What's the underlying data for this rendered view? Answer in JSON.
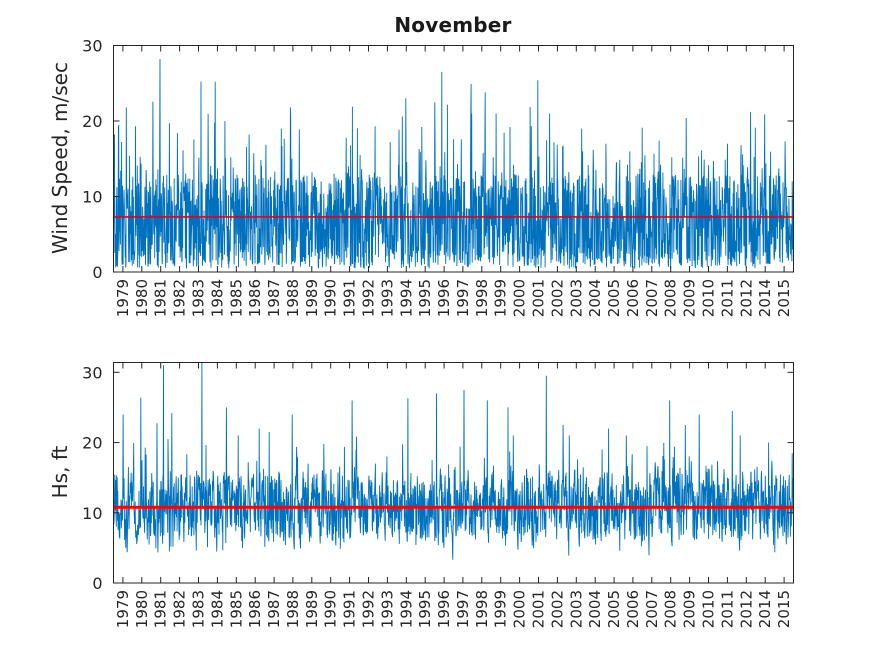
{
  "chart_data": [
    {
      "type": "line",
      "title": "November",
      "ylabel": "Wind Speed, m/sec",
      "ylim": [
        0,
        30
      ],
      "yticks": [
        0,
        10,
        20,
        30
      ],
      "x_tick_labels": [
        "1979",
        "1980",
        "1981",
        "1982",
        "1983",
        "1984",
        "1985",
        "1986",
        "1987",
        "1988",
        "1989",
        "1990",
        "1991",
        "1992",
        "1993",
        "1994",
        "1995",
        "1996",
        "1997",
        "1998",
        "1999",
        "2000",
        "2001",
        "2002",
        "2003",
        "2004",
        "2005",
        "2006",
        "2007",
        "2008",
        "2009",
        "2010",
        "2011",
        "2012",
        "2014",
        "2015"
      ],
      "x_note": "concatenated November samples per year; no 2013 data",
      "grid": false,
      "legend": "none",
      "series": [
        {
          "name": "wind-speed",
          "color": "#0072BD",
          "yearly_peaks": [
            21.8,
            19.3,
            28.2,
            18.4,
            25.2,
            25.2,
            15.2,
            18.2,
            19.0,
            21.8,
            13.2,
            13.0,
            21.9,
            19.3,
            17.2,
            23.0,
            19.2,
            26.5,
            24.9,
            23.8,
            21.0,
            14.2,
            25.4,
            21.0,
            19.0,
            16.2,
            17.0,
            19.1,
            17.4,
            15.2,
            20.4,
            16.1,
            17.0,
            21.2,
            20.9,
            17.3
          ],
          "typical_min": 0.4
        }
      ],
      "mean_line": {
        "value": 7.3,
        "color": "#ee0000"
      }
    },
    {
      "type": "line",
      "title": "",
      "ylabel": "Hs, ft",
      "ylim": [
        0,
        31.4
      ],
      "yticks": [
        0,
        10,
        20,
        30
      ],
      "x_tick_labels": [
        "1979",
        "1980",
        "1981",
        "1982",
        "1983",
        "1984",
        "1985",
        "1986",
        "1987",
        "1988",
        "1989",
        "1990",
        "1991",
        "1992",
        "1993",
        "1994",
        "1995",
        "1996",
        "1997",
        "1998",
        "1999",
        "2000",
        "2001",
        "2002",
        "2003",
        "2004",
        "2005",
        "2006",
        "2007",
        "2008",
        "2009",
        "2010",
        "2011",
        "2012",
        "2014",
        "2015"
      ],
      "x_note": "concatenated November samples per year; no 2013 data",
      "grid": false,
      "legend": "none",
      "series": [
        {
          "name": "significant-wave-height",
          "color": "#0072BD",
          "yearly_peaks": [
            24.0,
            26.4,
            31.0,
            24.2,
            31.4,
            25.0,
            21.0,
            22.0,
            21.5,
            24.0,
            17.0,
            19.8,
            26.0,
            17.0,
            18.0,
            26.3,
            17.5,
            27.0,
            27.5,
            26.0,
            25.0,
            21.0,
            29.5,
            22.5,
            21.0,
            19.0,
            22.0,
            21.0,
            19.5,
            26.0,
            22.5,
            24.0,
            24.5,
            21.0,
            20.0,
            18.5
          ],
          "typical_min": 2.4
        }
      ],
      "mean_line": {
        "value": 10.8,
        "color": "#ff0000"
      }
    }
  ],
  "axis_color": "#262626",
  "background_color": "#ffffff"
}
